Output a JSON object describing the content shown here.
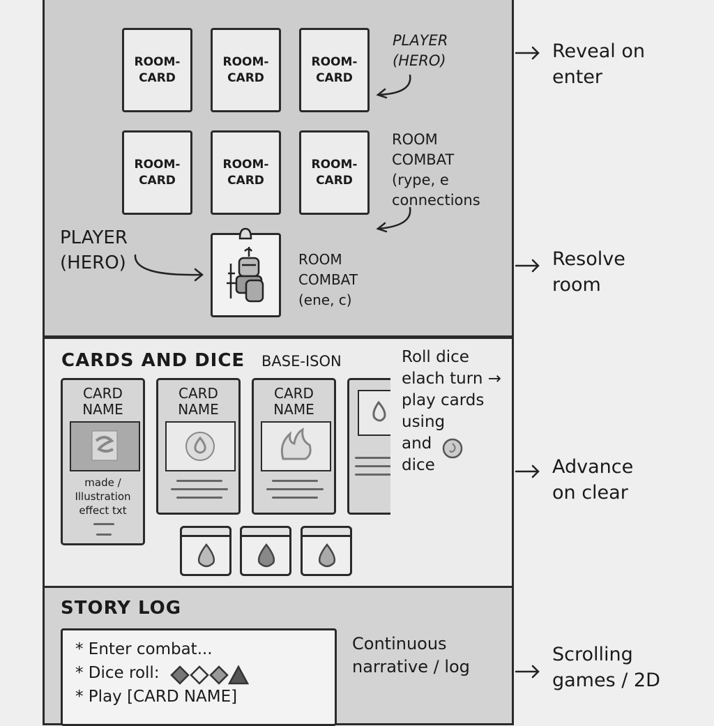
{
  "board": {
    "room_cards_row1": [
      "ROOM-\nCARD",
      "ROOM-\nCARD",
      "ROOM-\nCARD"
    ],
    "room_cards_row2": [
      "ROOM-\nCARD",
      "ROOM-\nCARD",
      "ROOM-\nCARD"
    ],
    "player_note_top": "PLAYER\n(HERO)",
    "room_note_mid": "ROOM\nCOMBAT\n(rype, e\nconnections",
    "player_note_left": "PLAYER\n(HERO)",
    "room_note_bottom": "ROOM\nCOMBAT\n(ene, c)"
  },
  "cards_section": {
    "title": "CARDS AND DICE",
    "subtitle": "BASE-ISON",
    "cards": [
      {
        "name": "CARD\nNAME",
        "text": "made /\nIllustration\neffect txt"
      },
      {
        "name": "CARD\nNAME"
      },
      {
        "name": "CARD\nNAME"
      }
    ],
    "note": "Roll dice\nelach turn →\nplay cards\nusing\nand\ndice"
  },
  "story": {
    "title": "STORY LOG",
    "lines": [
      "* Enter combat...",
      "* Dice roll:",
      "* Play [CARD NAME]"
    ],
    "note": "Continuous\nnarrative / log"
  },
  "flow": {
    "steps": [
      "Reveal on\nenter",
      "Resolve\nroom",
      "Advance\non clear",
      "Scrolling\ngames / 2D"
    ]
  }
}
